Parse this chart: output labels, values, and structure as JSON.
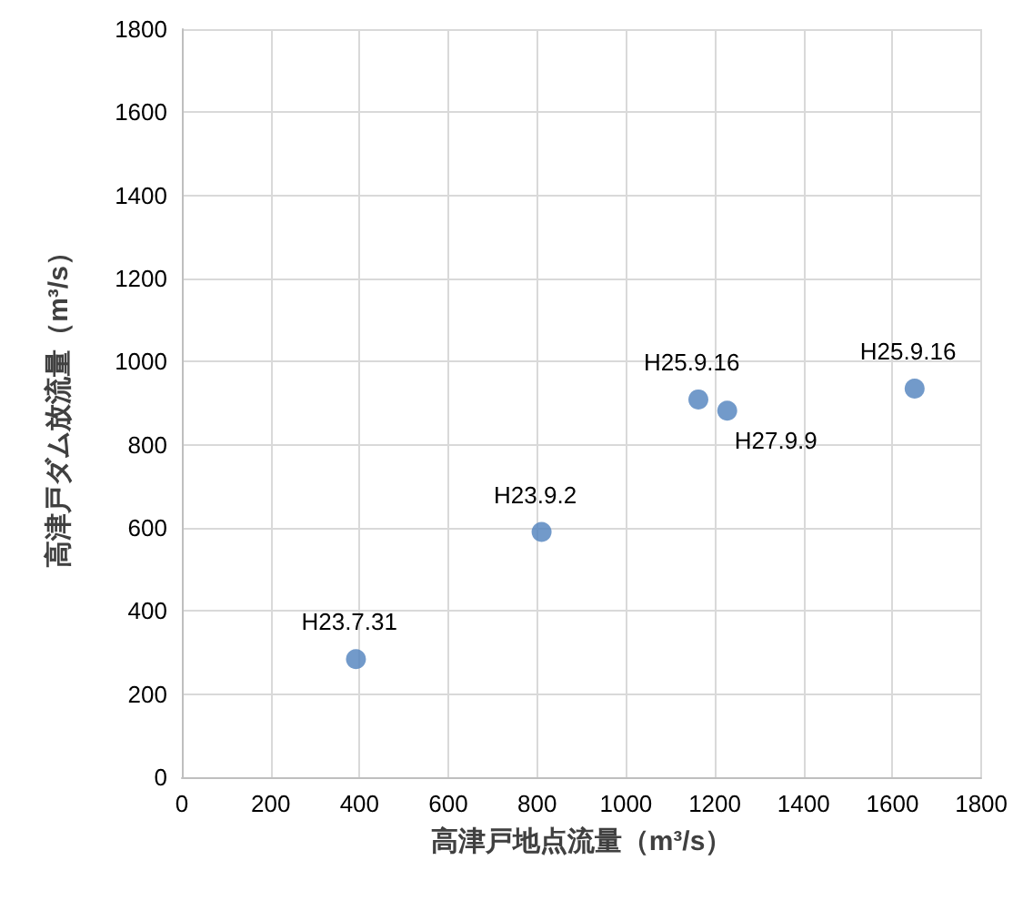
{
  "chart_data": {
    "type": "scatter",
    "x": [
      392,
      810,
      1163,
      1228,
      1650
    ],
    "values": [
      284,
      590,
      909,
      882,
      935
    ],
    "color": "#4f81bd",
    "xlabel": "高津戸地点流量（m³/s）",
    "ylabel": "高津戸ダム放流量（m³/s）",
    "xlim": [
      0,
      1800
    ],
    "xticks": [
      0,
      200,
      400,
      600,
      800,
      1000,
      1200,
      1400,
      1600,
      1800
    ],
    "ylim": [
      0,
      1800
    ],
    "yticks": [
      0,
      200,
      400,
      600,
      800,
      1000,
      1200,
      1400,
      1600,
      1800
    ],
    "grid": true,
    "marker": "circle",
    "annotations": [
      {
        "text": "H23.7.31",
        "x": 392,
        "y": 284
      },
      {
        "text": "H23.9.2",
        "x": 810,
        "y": 590
      },
      {
        "text": "H25.9.16",
        "x": 1163,
        "y": 909
      },
      {
        "text": "H27.9.9",
        "x": 1228,
        "y": 882
      },
      {
        "text": "H25.9.16",
        "x": 1650,
        "y": 935
      }
    ]
  }
}
